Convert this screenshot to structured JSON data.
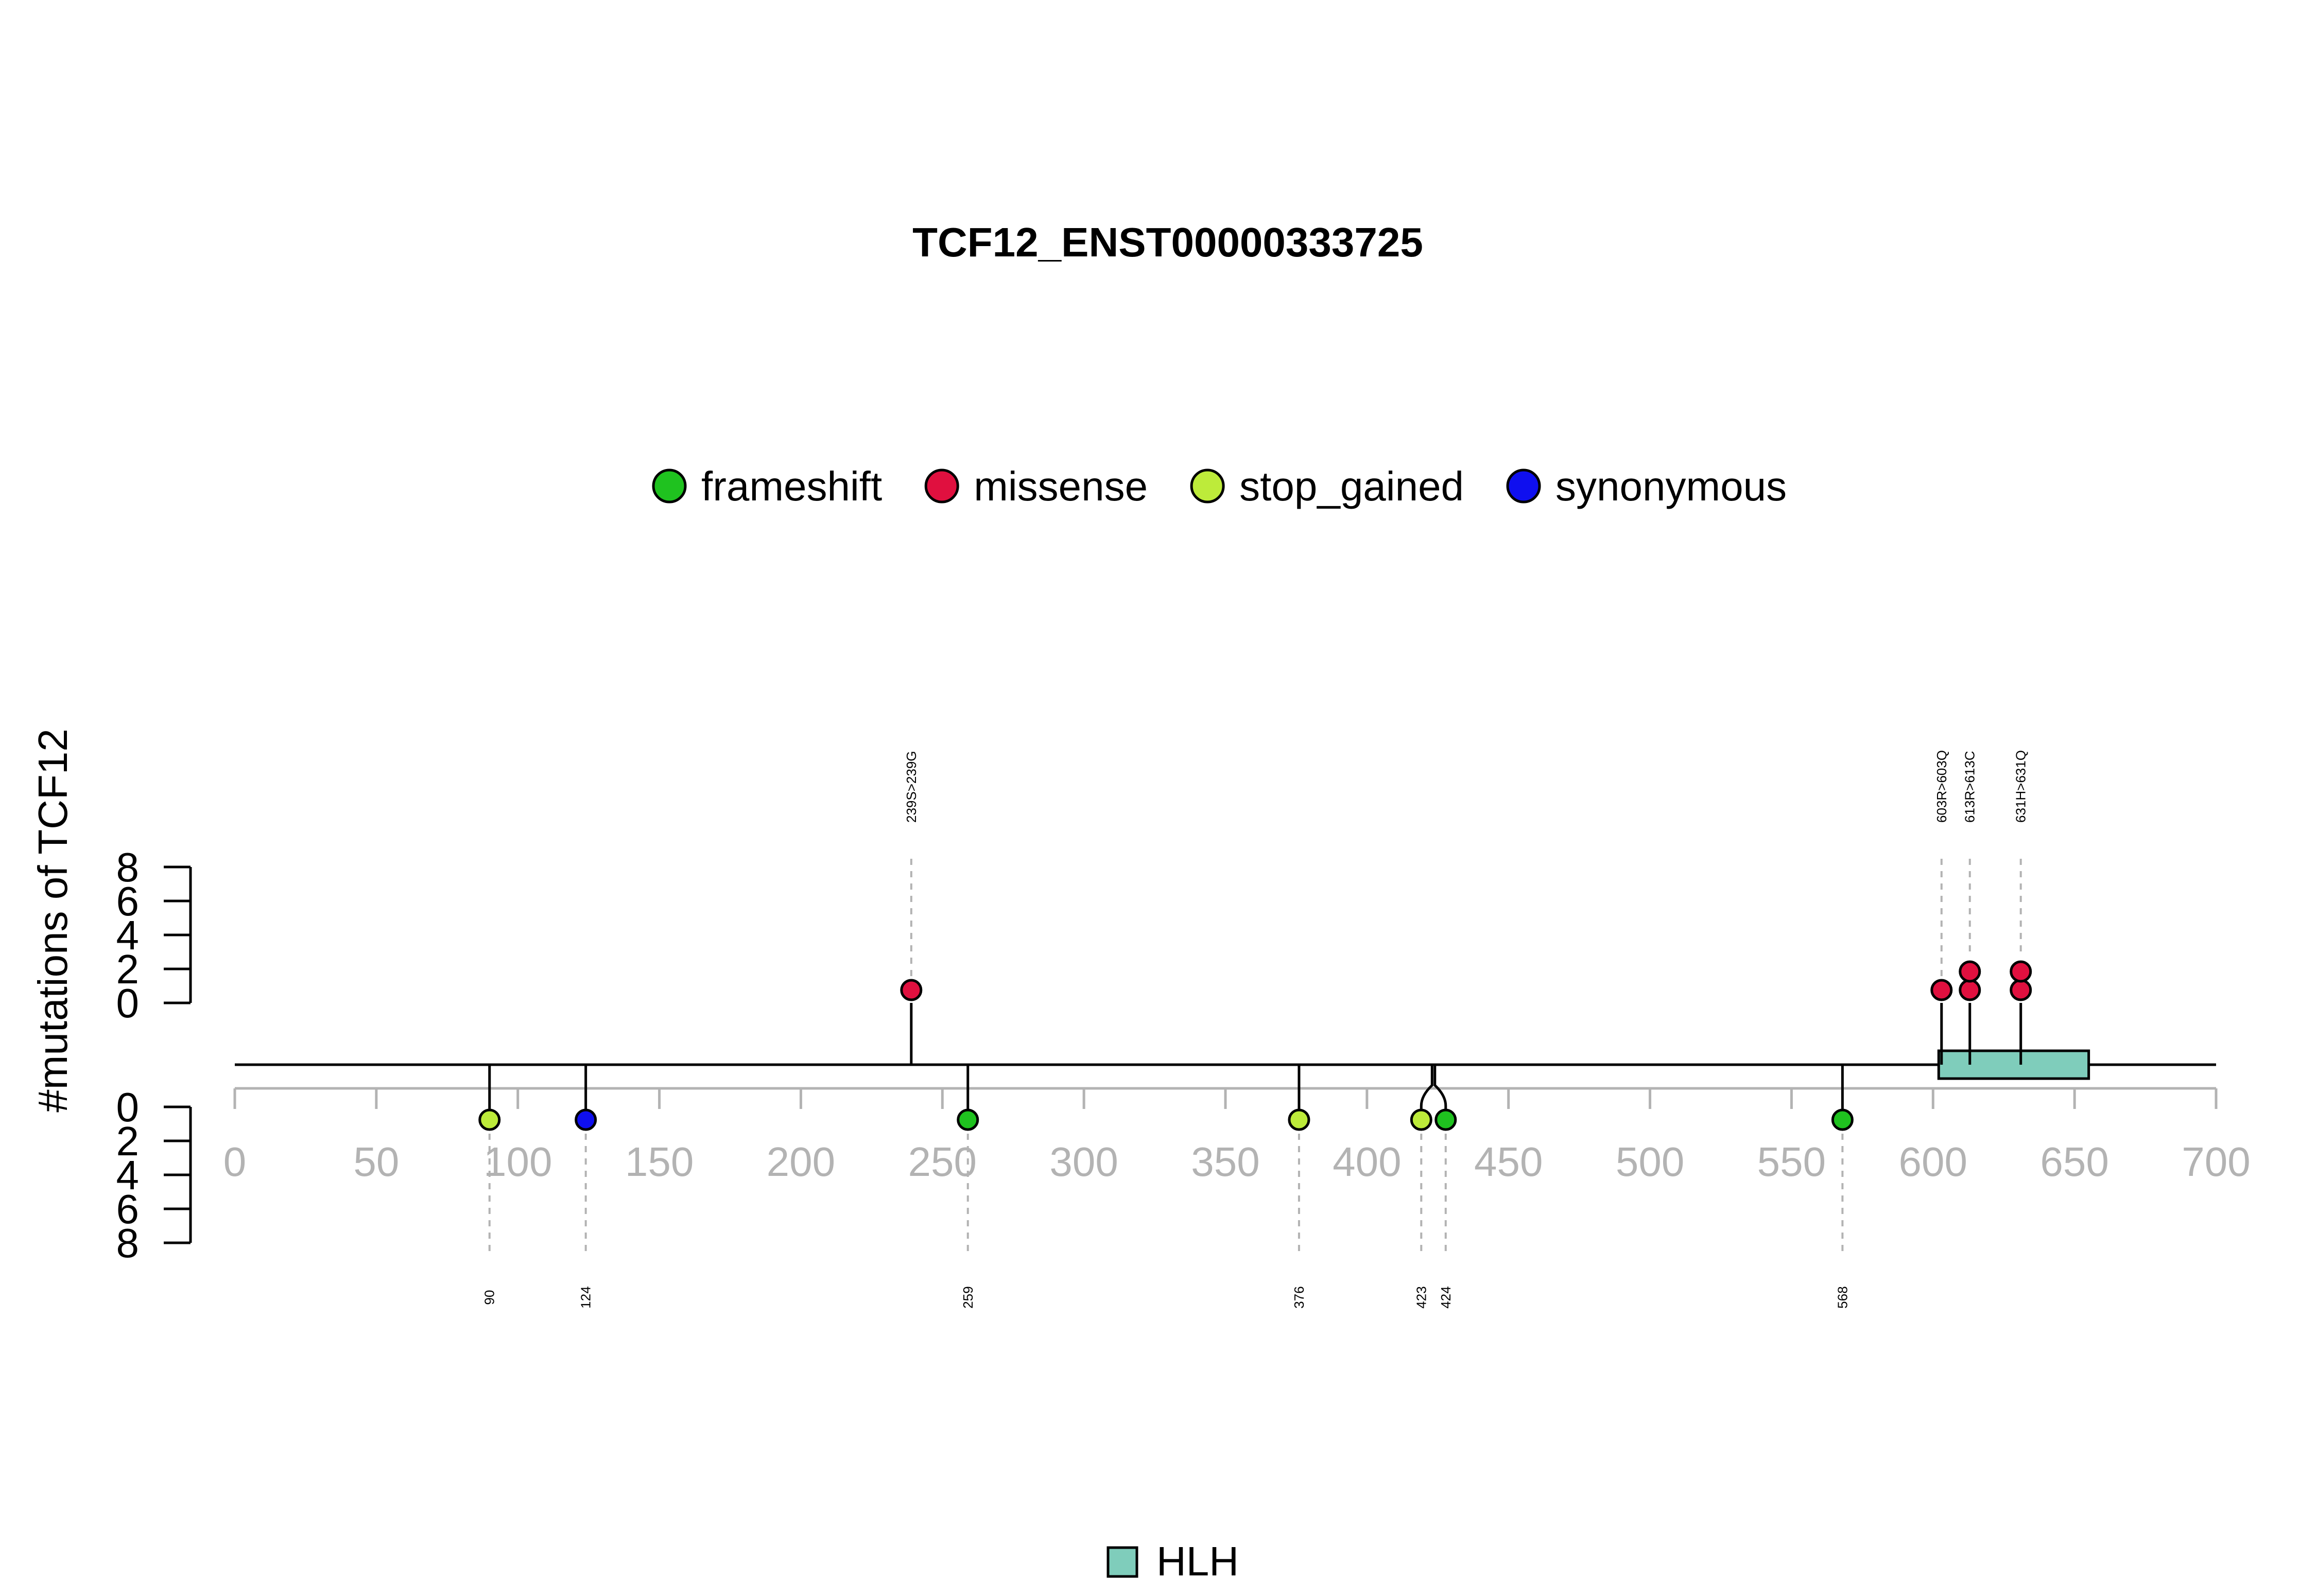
{
  "chart_data": {
    "type": "lollipop",
    "title": "TCF12_ENST00000333725",
    "ylabel": "#mutations of TCF12",
    "xlim": [
      0,
      700
    ],
    "x_ticks": [
      0,
      50,
      100,
      150,
      200,
      250,
      300,
      350,
      400,
      450,
      500,
      550,
      600,
      650,
      700
    ],
    "y_ticks": [
      0,
      2,
      4,
      6,
      8
    ],
    "ylim": [
      0,
      8
    ],
    "legend": [
      {
        "name": "frameshift",
        "color": "#1fc21f"
      },
      {
        "name": "missense",
        "color": "#e0103f"
      },
      {
        "name": "stop_gained",
        "color": "#bdeb3a"
      },
      {
        "name": "synonymous",
        "color": "#0f0fef"
      }
    ],
    "domains": [
      {
        "name": "HLH",
        "start": 602,
        "end": 655,
        "color": "#7fcdbb"
      }
    ],
    "mutations_top": [
      {
        "position": 239,
        "label": "239S>239G",
        "type": "missense",
        "count": 1
      },
      {
        "position": 603,
        "label": "603R>603Q",
        "type": "missense",
        "count": 1
      },
      {
        "position": 613,
        "label": "613R>613C",
        "type": "missense",
        "count": 2
      },
      {
        "position": 631,
        "label": "631H>631Q",
        "type": "missense",
        "count": 2
      }
    ],
    "mutations_bottom": [
      {
        "position": 90,
        "label": "90",
        "type": "stop_gained",
        "count": 1
      },
      {
        "position": 124,
        "label": "124",
        "type": "synonymous",
        "count": 1
      },
      {
        "position": 259,
        "label": "259",
        "type": "frameshift",
        "count": 1
      },
      {
        "position": 376,
        "label": "376",
        "type": "stop_gained",
        "count": 1
      },
      {
        "position": 423,
        "label": "423",
        "type": "stop_gained",
        "count": 1
      },
      {
        "position": 424,
        "label": "424",
        "type": "frameshift",
        "count": 1
      },
      {
        "position": 568,
        "label": "568",
        "type": "frameshift",
        "count": 1
      }
    ]
  }
}
